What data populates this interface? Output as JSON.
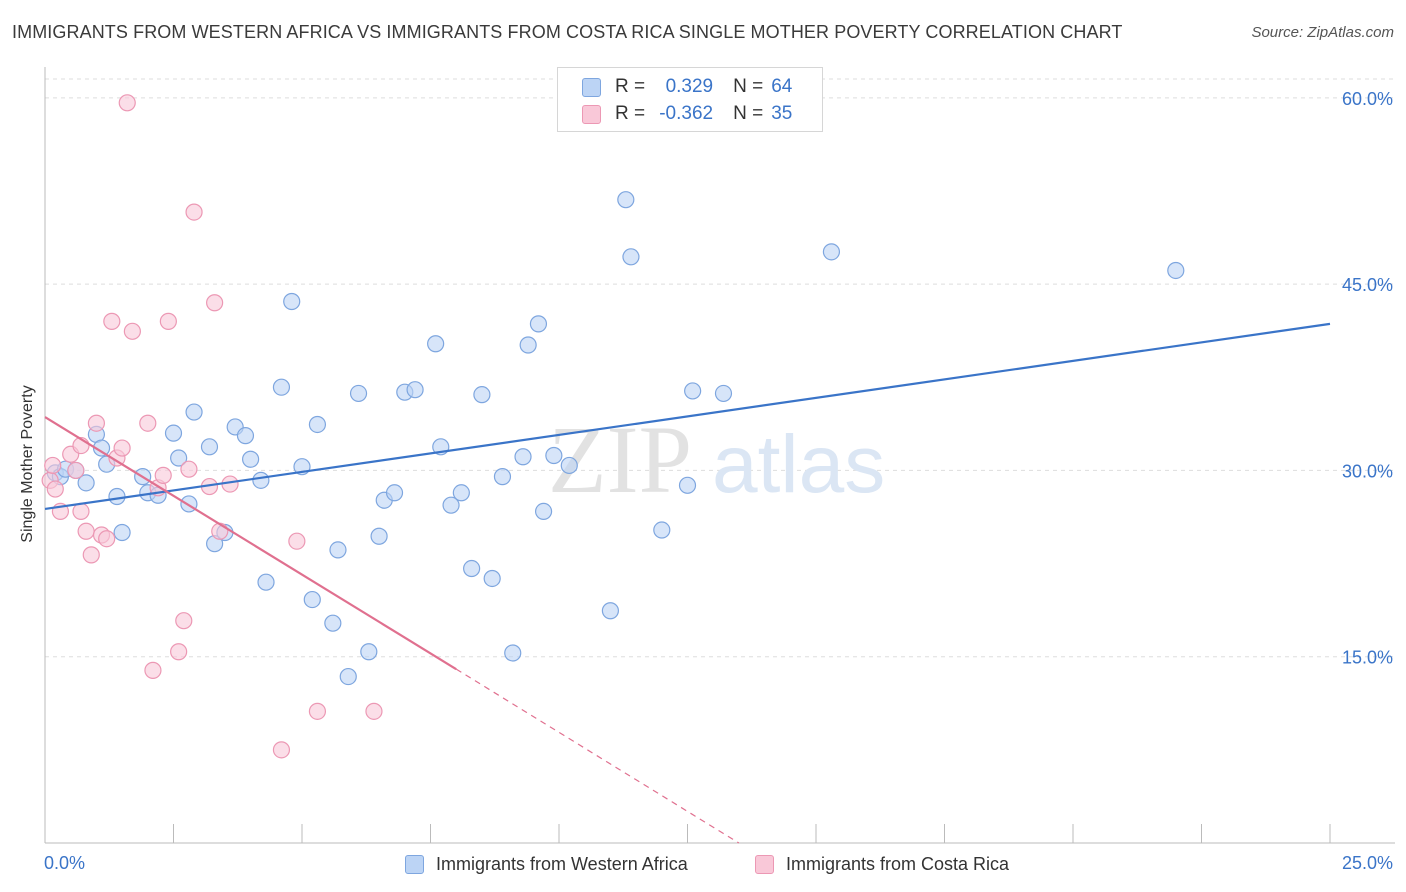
{
  "title": "IMMIGRANTS FROM WESTERN AFRICA VS IMMIGRANTS FROM COSTA RICA SINGLE MOTHER POVERTY CORRELATION CHART",
  "source": "Source: ZipAtlas.com",
  "watermark": {
    "zip": "ZIP",
    "atlas": "atlas"
  },
  "legend": {
    "r_label": "R =",
    "n_label": "N =",
    "rows": [
      {
        "r": "0.329",
        "n": "64"
      },
      {
        "r": "-0.362",
        "n": "35"
      }
    ]
  },
  "colors": {
    "blue_fill": "#bcd4f5",
    "blue_stroke": "#7ea6df",
    "blue_line": "#3a74c8",
    "pink_fill": "#f9c8d8",
    "pink_stroke": "#ec98b4",
    "pink_line": "#e0708f",
    "value_text": "#3a74c8",
    "grid": "#dddddd"
  },
  "chart_data": {
    "type": "scatter",
    "title": "IMMIGRANTS FROM WESTERN AFRICA VS IMMIGRANTS FROM COSTA RICA SINGLE MOTHER POVERTY CORRELATION CHART",
    "xlabel": "",
    "ylabel": "Single Mother Poverty",
    "xlim": [
      0,
      25
    ],
    "ylim": [
      0,
      62
    ],
    "x_tick_labels": [
      "0.0%",
      "25.0%"
    ],
    "y_ticks": [
      15,
      30,
      45,
      60
    ],
    "y_tick_labels": [
      "15.0%",
      "30.0%",
      "45.0%",
      "60.0%"
    ],
    "grid": true,
    "legend_position": "top-center",
    "series": [
      {
        "name": "Immigrants from Western Africa",
        "r": 0.329,
        "n": 64,
        "points": [
          [
            0.2,
            29.8
          ],
          [
            0.3,
            29.5
          ],
          [
            0.4,
            30.1
          ],
          [
            0.8,
            29.0
          ],
          [
            1.2,
            30.5
          ],
          [
            1.0,
            32.9
          ],
          [
            1.1,
            31.8
          ],
          [
            1.4,
            27.9
          ],
          [
            1.5,
            25.0
          ],
          [
            1.9,
            29.5
          ],
          [
            2.0,
            28.2
          ],
          [
            2.2,
            28.0
          ],
          [
            2.5,
            33.0
          ],
          [
            2.6,
            31.0
          ],
          [
            2.8,
            27.3
          ],
          [
            2.9,
            34.7
          ],
          [
            3.2,
            31.9
          ],
          [
            3.3,
            24.1
          ],
          [
            3.5,
            25.0
          ],
          [
            3.7,
            33.5
          ],
          [
            3.9,
            32.8
          ],
          [
            4.0,
            30.9
          ],
          [
            4.2,
            29.2
          ],
          [
            4.3,
            21.0
          ],
          [
            4.6,
            36.7
          ],
          [
            4.8,
            43.6
          ],
          [
            5.0,
            30.3
          ],
          [
            5.2,
            19.6
          ],
          [
            5.3,
            33.7
          ],
          [
            5.6,
            17.7
          ],
          [
            5.7,
            23.6
          ],
          [
            5.9,
            13.4
          ],
          [
            6.1,
            36.2
          ],
          [
            6.3,
            15.4
          ],
          [
            6.5,
            24.7
          ],
          [
            6.6,
            27.6
          ],
          [
            6.8,
            28.2
          ],
          [
            7.0,
            36.3
          ],
          [
            7.2,
            36.5
          ],
          [
            7.6,
            40.2
          ],
          [
            7.7,
            31.9
          ],
          [
            7.9,
            27.2
          ],
          [
            8.1,
            28.2
          ],
          [
            8.3,
            22.1
          ],
          [
            8.5,
            36.1
          ],
          [
            8.7,
            21.3
          ],
          [
            8.9,
            29.5
          ],
          [
            9.1,
            15.3
          ],
          [
            9.3,
            31.1
          ],
          [
            9.4,
            40.1
          ],
          [
            9.6,
            41.8
          ],
          [
            9.7,
            26.7
          ],
          [
            9.9,
            31.2
          ],
          [
            10.2,
            30.4
          ],
          [
            11.0,
            18.7
          ],
          [
            11.3,
            51.8
          ],
          [
            11.4,
            47.2
          ],
          [
            12.0,
            25.2
          ],
          [
            12.5,
            28.8
          ],
          [
            12.6,
            36.4
          ],
          [
            13.2,
            36.2
          ],
          [
            15.3,
            47.6
          ],
          [
            22.0,
            46.1
          ],
          [
            0.6,
            30.0
          ]
        ],
        "trendline": {
          "x1": 0.0,
          "y1": 26.9,
          "x2": 25.0,
          "y2": 41.8
        }
      },
      {
        "name": "Immigrants from Costa Rica",
        "r": -0.362,
        "n": 35,
        "points": [
          [
            0.1,
            29.2
          ],
          [
            0.2,
            28.5
          ],
          [
            0.3,
            26.7
          ],
          [
            0.5,
            31.3
          ],
          [
            0.6,
            30.0
          ],
          [
            0.7,
            26.7
          ],
          [
            0.7,
            32.0
          ],
          [
            0.8,
            25.1
          ],
          [
            0.9,
            23.2
          ],
          [
            1.0,
            33.8
          ],
          [
            1.1,
            24.8
          ],
          [
            1.2,
            24.5
          ],
          [
            1.3,
            42.0
          ],
          [
            1.4,
            31.0
          ],
          [
            1.5,
            31.8
          ],
          [
            1.6,
            59.6
          ],
          [
            1.7,
            41.2
          ],
          [
            2.0,
            33.8
          ],
          [
            2.1,
            13.9
          ],
          [
            2.2,
            28.6
          ],
          [
            2.3,
            29.6
          ],
          [
            2.4,
            42.0
          ],
          [
            2.6,
            15.4
          ],
          [
            2.7,
            17.9
          ],
          [
            2.8,
            30.1
          ],
          [
            2.9,
            50.8
          ],
          [
            3.2,
            28.7
          ],
          [
            3.3,
            43.5
          ],
          [
            3.4,
            25.1
          ],
          [
            3.6,
            28.9
          ],
          [
            4.6,
            7.5
          ],
          [
            4.9,
            24.3
          ],
          [
            5.3,
            10.6
          ],
          [
            6.4,
            10.6
          ],
          [
            0.15,
            30.4
          ]
        ],
        "trendline": {
          "x1": 0.0,
          "y1": 34.3,
          "x2": 8.0,
          "y2": 14.0
        },
        "trendline_dashed_extension": {
          "x1": 8.0,
          "y1": 14.0,
          "x2": 13.5,
          "y2": 0.0
        }
      }
    ]
  }
}
